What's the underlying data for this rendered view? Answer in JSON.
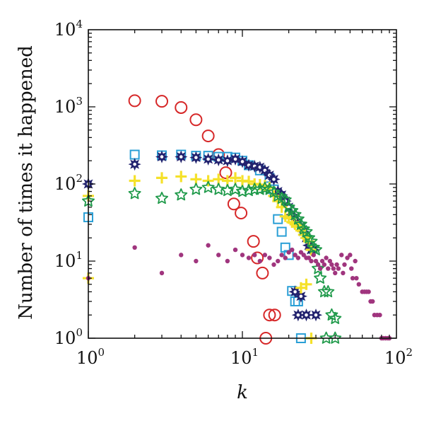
{
  "chart_data": {
    "type": "scatter",
    "xlabel": "k",
    "ylabel": "Number of times it happened",
    "xscale": "log",
    "yscale": "log",
    "xlim": [
      1,
      100
    ],
    "ylim": [
      1,
      10000
    ],
    "x_ticks": [
      {
        "value": 1,
        "base": "10",
        "exp": "0"
      },
      {
        "value": 10,
        "base": "10",
        "exp": "1"
      },
      {
        "value": 100,
        "base": "10",
        "exp": "2"
      }
    ],
    "y_ticks": [
      {
        "value": 1,
        "base": "10",
        "exp": "0"
      },
      {
        "value": 10,
        "base": "10",
        "exp": "1"
      },
      {
        "value": 100,
        "base": "10",
        "exp": "2"
      },
      {
        "value": 1000,
        "base": "10",
        "exp": "3"
      },
      {
        "value": 10000,
        "base": "10",
        "exp": "4"
      }
    ],
    "grid": false,
    "legend": "none",
    "series": [
      {
        "marker": "circle-open",
        "color": "#d62728",
        "points": [
          [
            2,
            1200
          ],
          [
            3,
            1180
          ],
          [
            4,
            980
          ],
          [
            5,
            680
          ],
          [
            6,
            420
          ],
          [
            7,
            240
          ],
          [
            7.8,
            140
          ],
          [
            8.8,
            55
          ],
          [
            9.8,
            42
          ],
          [
            11.8,
            18
          ],
          [
            12.5,
            11
          ],
          [
            13.5,
            7
          ],
          [
            14.2,
            1
          ],
          [
            15,
            2
          ],
          [
            16.2,
            2
          ]
        ]
      },
      {
        "marker": "square-open",
        "color": "#2a9fd6",
        "points": [
          [
            1,
            37
          ],
          [
            2,
            240
          ],
          [
            3,
            235
          ],
          [
            4,
            240
          ],
          [
            5,
            232
          ],
          [
            6,
            232
          ],
          [
            7,
            225
          ],
          [
            8,
            225
          ],
          [
            9,
            220
          ],
          [
            10,
            200
          ],
          [
            11,
            175
          ],
          [
            13,
            150
          ],
          [
            15,
            120
          ],
          [
            16,
            85
          ],
          [
            17,
            35
          ],
          [
            18,
            24
          ],
          [
            19,
            15
          ],
          [
            20,
            12
          ],
          [
            21,
            4.1
          ],
          [
            22,
            3
          ],
          [
            23,
            3
          ],
          [
            24,
            1
          ]
        ]
      },
      {
        "marker": "star6",
        "color": "#22226e",
        "points": [
          [
            1,
            100
          ],
          [
            2,
            180
          ],
          [
            3,
            225
          ],
          [
            4,
            225
          ],
          [
            5,
            220
          ],
          [
            6,
            210
          ],
          [
            7,
            205
          ],
          [
            8,
            200
          ],
          [
            9,
            210
          ],
          [
            10,
            195
          ],
          [
            11,
            175
          ],
          [
            12,
            170
          ],
          [
            13,
            165
          ],
          [
            14,
            150
          ],
          [
            15,
            130
          ],
          [
            16,
            115
          ],
          [
            17,
            80
          ],
          [
            18,
            72
          ],
          [
            19,
            60
          ],
          [
            20,
            50
          ],
          [
            21,
            40
          ],
          [
            22,
            35
          ],
          [
            23,
            30
          ],
          [
            24,
            28
          ],
          [
            25,
            24
          ],
          [
            26,
            20
          ],
          [
            27,
            16
          ],
          [
            28,
            14
          ],
          [
            29,
            14
          ],
          [
            22,
            4
          ],
          [
            23,
            2
          ],
          [
            26,
            2
          ],
          [
            30,
            2
          ],
          [
            24,
            3.5
          ]
        ]
      },
      {
        "marker": "plus",
        "color": "#f5e12a",
        "points": [
          [
            1,
            70
          ],
          [
            1,
            6
          ],
          [
            2,
            110
          ],
          [
            3,
            120
          ],
          [
            4,
            125
          ],
          [
            5,
            115
          ],
          [
            6,
            110
          ],
          [
            7,
            115
          ],
          [
            8,
            110
          ],
          [
            9,
            120
          ],
          [
            10,
            110
          ],
          [
            11,
            108
          ],
          [
            12,
            100
          ],
          [
            13,
            98
          ],
          [
            14,
            95
          ],
          [
            15,
            90
          ],
          [
            16,
            70
          ],
          [
            17,
            60
          ],
          [
            18,
            50
          ],
          [
            19,
            38
          ],
          [
            20,
            36
          ],
          [
            21,
            32
          ],
          [
            22,
            30
          ],
          [
            23,
            28
          ],
          [
            24,
            25
          ],
          [
            25,
            22
          ],
          [
            26,
            20
          ],
          [
            27,
            18
          ],
          [
            28,
            14
          ],
          [
            24,
            4.5
          ],
          [
            26,
            5
          ],
          [
            28,
            1
          ]
        ]
      },
      {
        "marker": "star5-open",
        "color": "#1f9a4a",
        "points": [
          [
            1,
            60
          ],
          [
            2,
            75
          ],
          [
            3,
            65
          ],
          [
            4,
            72
          ],
          [
            5,
            85
          ],
          [
            6,
            90
          ],
          [
            7,
            85
          ],
          [
            8,
            82
          ],
          [
            9,
            85
          ],
          [
            10,
            80
          ],
          [
            11,
            82
          ],
          [
            12,
            85
          ],
          [
            13,
            85
          ],
          [
            14,
            88
          ],
          [
            15,
            85
          ],
          [
            16,
            78
          ],
          [
            17,
            70
          ],
          [
            18,
            65
          ],
          [
            19,
            62
          ],
          [
            20,
            50
          ],
          [
            21,
            45
          ],
          [
            22,
            40
          ],
          [
            23,
            35
          ],
          [
            24,
            30
          ],
          [
            25,
            26
          ],
          [
            26,
            24
          ],
          [
            27,
            20
          ],
          [
            28,
            18
          ],
          [
            29,
            15
          ],
          [
            30,
            14
          ],
          [
            31,
            8
          ],
          [
            32,
            6
          ],
          [
            34,
            4
          ],
          [
            36,
            4
          ],
          [
            38,
            2
          ],
          [
            40,
            1.8
          ],
          [
            35,
            1
          ],
          [
            40,
            1
          ]
        ]
      },
      {
        "marker": "dot",
        "color": "#a0357e",
        "points": [
          [
            1,
            6
          ],
          [
            2,
            15
          ],
          [
            3,
            7
          ],
          [
            4,
            12
          ],
          [
            5,
            10
          ],
          [
            6,
            16
          ],
          [
            7,
            12
          ],
          [
            8,
            10
          ],
          [
            9,
            14
          ],
          [
            10,
            12
          ],
          [
            11,
            11
          ],
          [
            12,
            12
          ],
          [
            13,
            10
          ],
          [
            14,
            12
          ],
          [
            15,
            11
          ],
          [
            16,
            9
          ],
          [
            17,
            10
          ],
          [
            18,
            12
          ],
          [
            19,
            11
          ],
          [
            20,
            13
          ],
          [
            21,
            14
          ],
          [
            22,
            12
          ],
          [
            23,
            11
          ],
          [
            24,
            13
          ],
          [
            25,
            12
          ],
          [
            26,
            11
          ],
          [
            27,
            11
          ],
          [
            28,
            10
          ],
          [
            29,
            12
          ],
          [
            30,
            10
          ],
          [
            31,
            9
          ],
          [
            32,
            8
          ],
          [
            33,
            10
          ],
          [
            34,
            9
          ],
          [
            35,
            11
          ],
          [
            36,
            8
          ],
          [
            37,
            10
          ],
          [
            38,
            9
          ],
          [
            39,
            8
          ],
          [
            40,
            7
          ],
          [
            41,
            9
          ],
          [
            42,
            8
          ],
          [
            44,
            12
          ],
          [
            45,
            7
          ],
          [
            46,
            9
          ],
          [
            48,
            11
          ],
          [
            50,
            12
          ],
          [
            51,
            8
          ],
          [
            52,
            6
          ],
          [
            54,
            10
          ],
          [
            55,
            6
          ],
          [
            57,
            5
          ],
          [
            60,
            4
          ],
          [
            62,
            4
          ],
          [
            64,
            4
          ],
          [
            66,
            4
          ],
          [
            68,
            3
          ],
          [
            70,
            3
          ],
          [
            72,
            2
          ],
          [
            75,
            2
          ],
          [
            78,
            2
          ],
          [
            80,
            1
          ],
          [
            82,
            1
          ],
          [
            85,
            1
          ],
          [
            88,
            1
          ],
          [
            90,
            1
          ]
        ]
      }
    ]
  }
}
